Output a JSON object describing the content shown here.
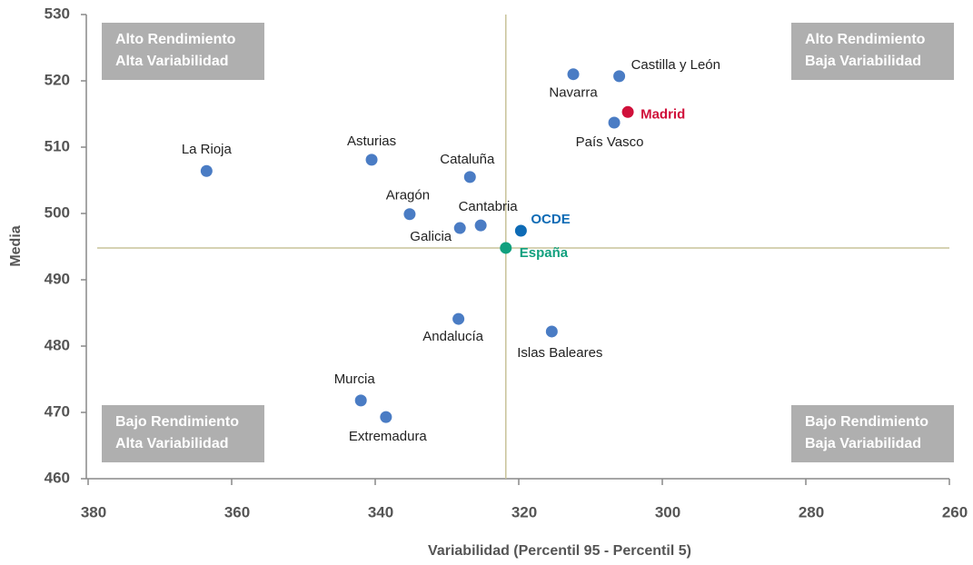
{
  "chart_data": {
    "type": "scatter",
    "xlabel": "Variabilidad (Percentil 95 - Percentil 5)",
    "ylabel": "Media",
    "categories": [
      "La Rioja",
      "Asturias",
      "Cataluña",
      "Aragón",
      "Cantabria",
      "Galicia",
      "OCDE",
      "España",
      "Navarra",
      "Castilla y León",
      "Madrid",
      "País Vasco",
      "Andalucía",
      "Islas Baleares",
      "Murcia",
      "Extremadura"
    ],
    "x": [
      363.5,
      340.5,
      326.8,
      335.2,
      325.3,
      328.2,
      319.7,
      321.8,
      312.4,
      306.0,
      304.8,
      306.7,
      328.4,
      315.4,
      342.0,
      338.5
    ],
    "values": [
      506.4,
      508.1,
      505.5,
      499.9,
      498.2,
      497.8,
      497.4,
      494.8,
      521.0,
      520.7,
      515.3,
      513.7,
      484.1,
      482.2,
      471.8,
      469.3
    ],
    "color": "#4a7cc4",
    "point_colors": [
      "#4a7cc4",
      "#4a7cc4",
      "#4a7cc4",
      "#4a7cc4",
      "#4a7cc4",
      "#4a7cc4",
      "#0e6bb5",
      "#11a07e",
      "#4a7cc4",
      "#4a7cc4",
      "#d0103a",
      "#4a7cc4",
      "#4a7cc4",
      "#4a7cc4",
      "#4a7cc4",
      "#4a7cc4"
    ],
    "xlim": [
      380,
      260
    ],
    "xticks": [
      380,
      360,
      340,
      320,
      300,
      280,
      260
    ],
    "ylim": [
      460,
      530
    ],
    "yticks": [
      460,
      470,
      480,
      490,
      500,
      510,
      520,
      530
    ],
    "reference_lines": {
      "x": 321.8,
      "y": 494.8,
      "color": "#c8c39a"
    },
    "quadrants": [
      {
        "corner": "top-left",
        "lines": [
          "Alto Rendimiento",
          "Alta Variabilidad"
        ]
      },
      {
        "corner": "top-right",
        "lines": [
          "Alto Rendimiento",
          "Baja Variabilidad"
        ]
      },
      {
        "corner": "bottom-left",
        "lines": [
          "Bajo Rendimiento",
          "Alta Variabilidad"
        ]
      },
      {
        "corner": "bottom-right",
        "lines": [
          "Bajo Rendimiento",
          "Baja Variabilidad"
        ]
      }
    ]
  }
}
